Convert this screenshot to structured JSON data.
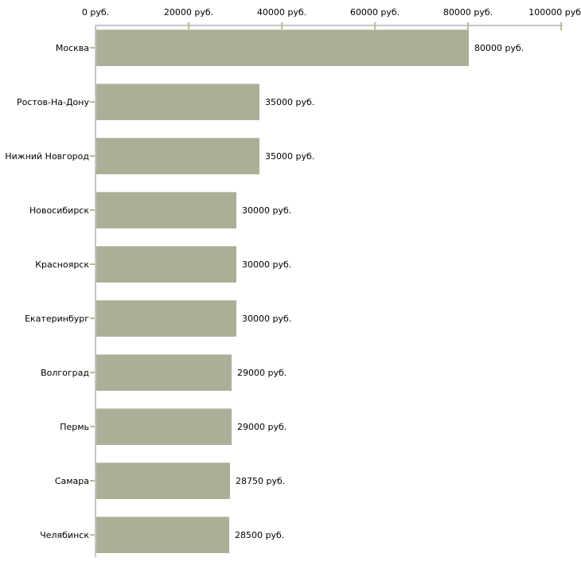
{
  "chart_data": {
    "type": "bar",
    "orientation": "horizontal",
    "title": "",
    "xlabel": "",
    "ylabel": "",
    "unit": "руб.",
    "categories": [
      "Москва",
      "Ростов-На-Дону",
      "Нижний Новгород",
      "Новосибирск",
      "Красноярск",
      "Екатеринбург",
      "Волгоград",
      "Пермь",
      "Самара",
      "Челябинск"
    ],
    "values": [
      80000,
      35000,
      35000,
      30000,
      30000,
      30000,
      29000,
      29000,
      28750,
      28500
    ],
    "value_labels": [
      "80000 руб.",
      "35000 руб.",
      "35000 руб.",
      "30000 руб.",
      "30000 руб.",
      "30000 руб.",
      "29000 руб.",
      "29000 руб.",
      "28750 руб.",
      "28500 руб."
    ],
    "x_axis": {
      "position": "top",
      "range": [
        0,
        100000
      ],
      "ticks": [
        0,
        20000,
        40000,
        60000,
        80000,
        100000
      ],
      "tick_labels": [
        "0 руб.",
        "20000 руб.",
        "40000 руб.",
        "60000 руб.",
        "80000 руб.",
        "100000 руб"
      ]
    },
    "grid": false,
    "legend": false,
    "colors": {
      "bar_fill": "#aab098",
      "bar_top_highlight": "#c9cdbc",
      "axis_line": "#c6c6c6",
      "tick_mark": "#b9bd92",
      "text": "#000000",
      "background": "#ffffff"
    }
  }
}
